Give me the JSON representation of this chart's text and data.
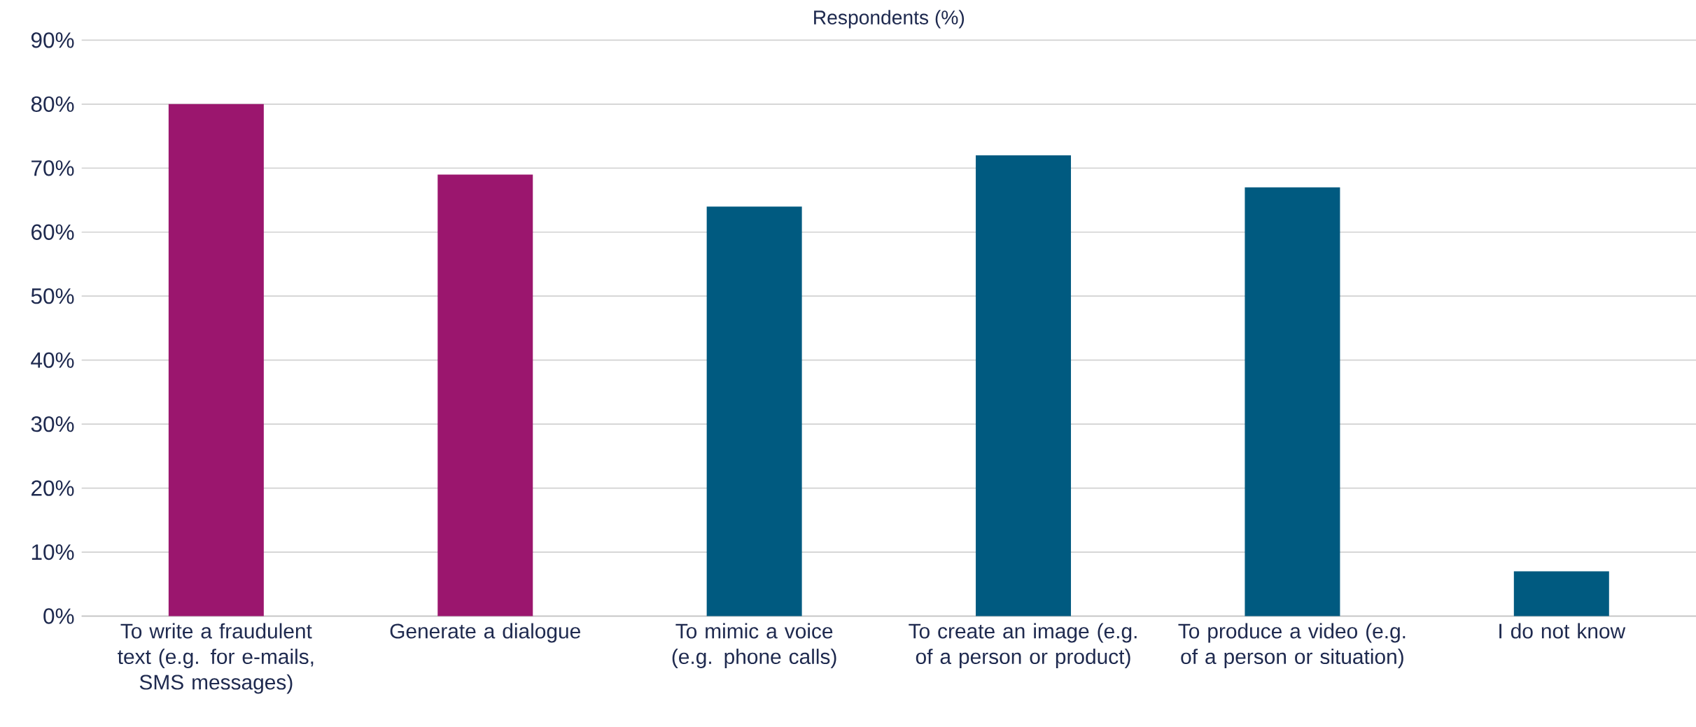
{
  "chart_data": {
    "type": "bar",
    "title": "Respondents (%)",
    "categories": [
      "To write a fraudulent text (e.g. for e-mails, SMS messages)",
      "Generate a dialogue",
      "To mimic a voice (e.g. phone calls)",
      "To create an image (e.g. of a person or product)",
      "To produce a video (e.g. of a person or situation)",
      "I do not know"
    ],
    "values": [
      80,
      69,
      64,
      72,
      67,
      7
    ],
    "colors": [
      "#9b166e",
      "#9b166e",
      "#005a80",
      "#005a80",
      "#005a80",
      "#005a80"
    ],
    "ylim": [
      0,
      90
    ],
    "yticks": [
      {
        "value": 0,
        "label": "0%"
      },
      {
        "value": 10,
        "label": "10%"
      },
      {
        "value": 20,
        "label": "20%"
      },
      {
        "value": 30,
        "label": "30%"
      },
      {
        "value": 40,
        "label": "40%"
      },
      {
        "value": 50,
        "label": "50%"
      },
      {
        "value": 60,
        "label": "60%"
      },
      {
        "value": 70,
        "label": "70%"
      },
      {
        "value": 80,
        "label": "80%"
      },
      {
        "value": 90,
        "label": "90%"
      }
    ],
    "grid": "y"
  }
}
